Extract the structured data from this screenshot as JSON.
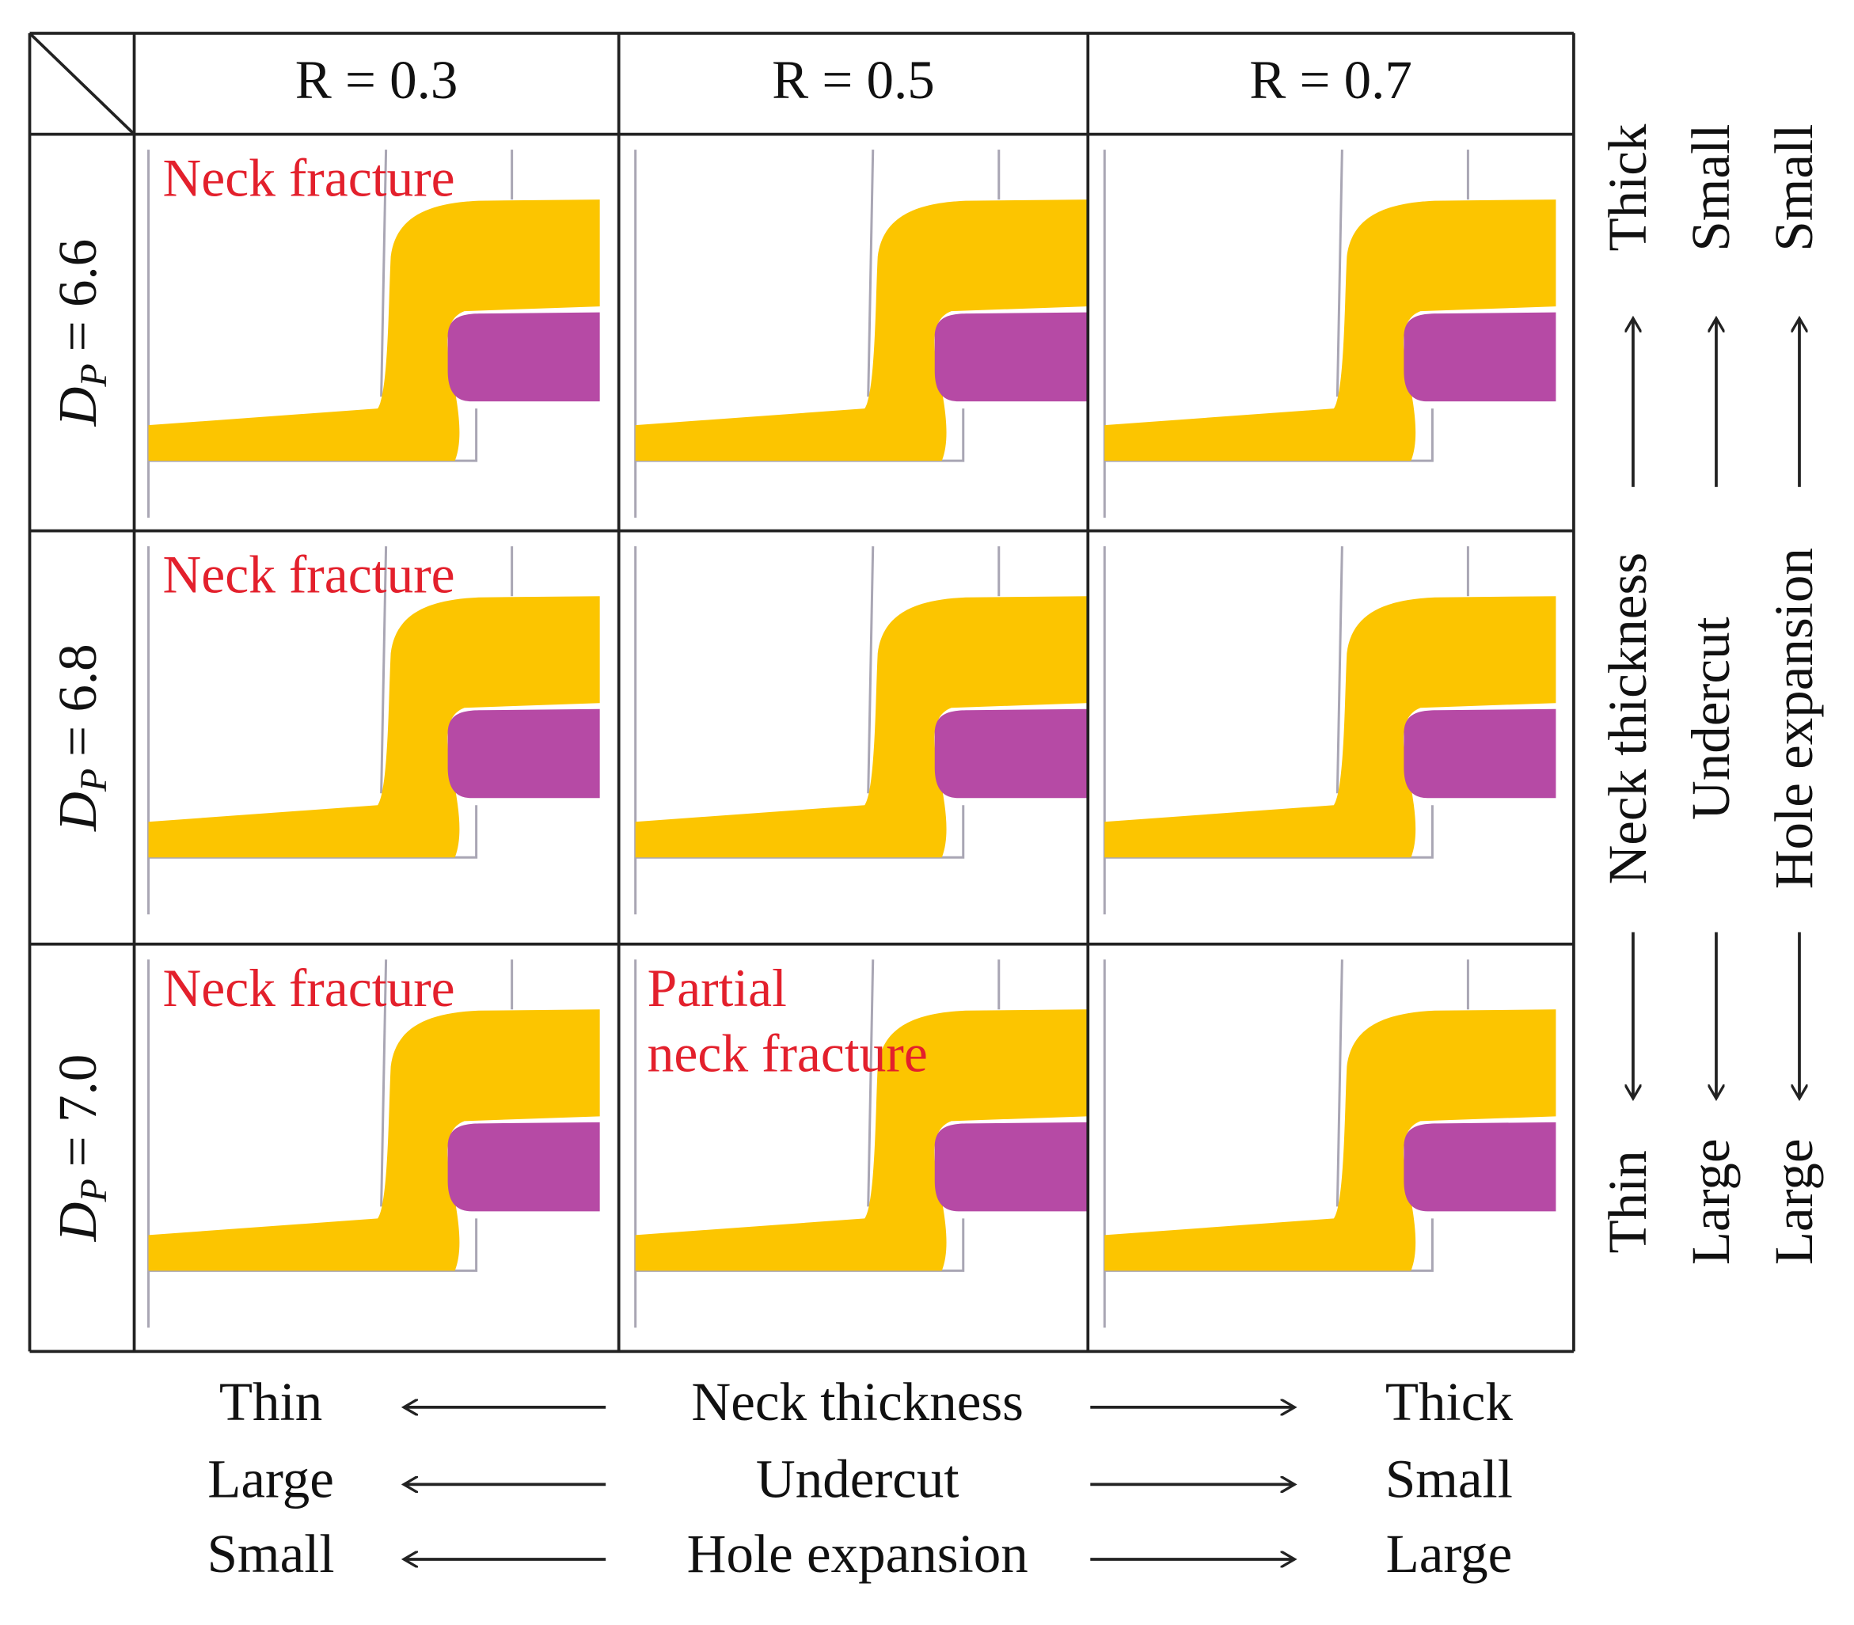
{
  "columns": [
    "R = 0.3",
    "R = 0.5",
    "R = 0.7"
  ],
  "rows": [
    {
      "label": {
        "symbol": "D",
        "subscript": "P",
        "value": "= 6.6"
      },
      "cells": [
        {
          "note": [
            "Neck fracture"
          ]
        },
        {},
        {}
      ]
    },
    {
      "label": {
        "symbol": "D",
        "subscript": "P",
        "value": "= 6.8"
      },
      "cells": [
        {
          "note": [
            "Neck fracture"
          ]
        },
        {},
        {}
      ]
    },
    {
      "label": {
        "symbol": "D",
        "subscript": "P",
        "value": "= 7.0"
      },
      "cells": [
        {
          "note": [
            "Neck fracture"
          ]
        },
        {
          "note": [
            "Partial",
            "neck fracture"
          ]
        },
        {}
      ]
    }
  ],
  "right_scales": [
    {
      "top": "Thick",
      "label": "Neck thickness",
      "bottom": "Thin"
    },
    {
      "top": "Small",
      "label": "Undercut",
      "bottom": "Large"
    },
    {
      "top": "Small",
      "label": "Hole expansion",
      "bottom": "Large"
    }
  ],
  "bottom_scales": [
    {
      "left": "Thin",
      "label": "Neck thickness",
      "right": "Thick"
    },
    {
      "left": "Large",
      "label": "Undercut",
      "right": "Small"
    },
    {
      "left": "Small",
      "label": "Hole expansion",
      "right": "Large"
    }
  ]
}
